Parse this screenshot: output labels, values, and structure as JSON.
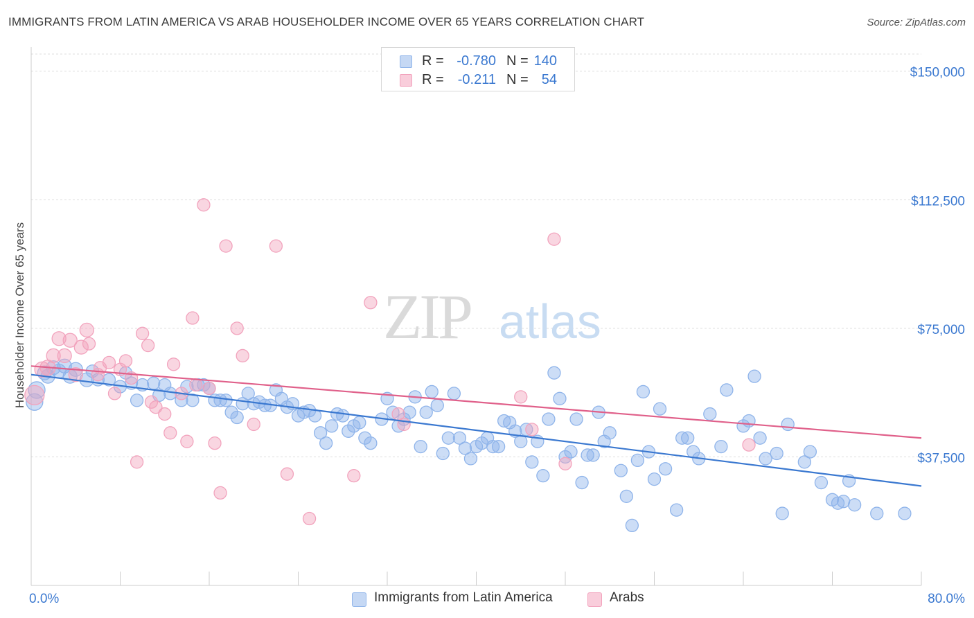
{
  "title": "IMMIGRANTS FROM LATIN AMERICA VS ARAB HOUSEHOLDER INCOME OVER 65 YEARS CORRELATION CHART",
  "source": "Source: ZipAtlas.com",
  "watermark": {
    "zip": "ZIP",
    "atlas": "atlas"
  },
  "legend": {
    "rows": [
      {
        "r_label": "R =",
        "r_value": "-0.780",
        "n_label": "N =",
        "n_value": "140",
        "color": "#8fb4ea"
      },
      {
        "r_label": "R =",
        "r_value": "-0.211",
        "n_label": "N =",
        "n_value": "54",
        "color": "#f2a3bd"
      }
    ]
  },
  "bottom_legend": [
    {
      "label": "Immigrants from Latin America",
      "color": "#8fb4ea"
    },
    {
      "label": "Arabs",
      "color": "#f2a3bd"
    }
  ],
  "chart_data": {
    "type": "scatter",
    "title": "IMMIGRANTS FROM LATIN AMERICA VS ARAB HOUSEHOLDER INCOME OVER 65 YEARS CORRELATION CHART",
    "xlabel": "",
    "ylabel": "Householder Income Over 65 years",
    "xlim": [
      0,
      80
    ],
    "ylim": [
      0,
      155000
    ],
    "x_tick_labels": [
      "0.0%",
      "80.0%"
    ],
    "y_ticks": [
      37500,
      75000,
      112500,
      150000
    ],
    "y_tick_labels": [
      "$37,500",
      "$75,000",
      "$112,500",
      "$150,000"
    ],
    "grid": true,
    "series": [
      {
        "name": "Immigrants from Latin America",
        "color": "#3a78d0",
        "fill": "#8fb4ea",
        "trend": {
          "x": [
            0,
            80
          ],
          "y": [
            61500,
            29000
          ]
        },
        "points": [
          [
            0.3,
            53500,
            12
          ],
          [
            0.5,
            57000,
            12
          ],
          [
            1.2,
            62000,
            10
          ],
          [
            1.5,
            61000,
            10
          ],
          [
            2.0,
            63500,
            10
          ],
          [
            2.5,
            62500,
            10
          ],
          [
            3.0,
            64000,
            10
          ],
          [
            3.5,
            61000,
            10
          ],
          [
            4.0,
            63000,
            10
          ],
          [
            5.0,
            60000,
            10
          ],
          [
            5.5,
            62500,
            9
          ],
          [
            6.0,
            60000,
            9
          ],
          [
            7.0,
            60000,
            9
          ],
          [
            8.0,
            58000,
            9
          ],
          [
            8.5,
            62000,
            9
          ],
          [
            9.0,
            59000,
            9
          ],
          [
            9.5,
            54000,
            9
          ],
          [
            10.0,
            58500,
            9
          ],
          [
            11.0,
            59000,
            9
          ],
          [
            11.5,
            55500,
            9
          ],
          [
            12.0,
            58500,
            9
          ],
          [
            12.5,
            56000,
            9
          ],
          [
            13.5,
            54000,
            9
          ],
          [
            14.0,
            58000,
            9
          ],
          [
            14.5,
            54000,
            9
          ],
          [
            15.0,
            58500,
            9
          ],
          [
            15.5,
            58500,
            9
          ],
          [
            16.0,
            57500,
            9
          ],
          [
            16.5,
            54000,
            9
          ],
          [
            17.0,
            54000,
            9
          ],
          [
            17.5,
            54000,
            9
          ],
          [
            18.0,
            50500,
            9
          ],
          [
            18.5,
            49000,
            9
          ],
          [
            19.0,
            53000,
            9
          ],
          [
            19.5,
            56000,
            9
          ],
          [
            20.0,
            53000,
            9
          ],
          [
            20.5,
            53500,
            9
          ],
          [
            21.0,
            52500,
            9
          ],
          [
            21.5,
            52500,
            9
          ],
          [
            22.0,
            57000,
            9
          ],
          [
            22.5,
            54500,
            9
          ],
          [
            23.0,
            52000,
            9
          ],
          [
            23.5,
            53000,
            9
          ],
          [
            24.0,
            49500,
            9
          ],
          [
            24.5,
            50500,
            9
          ],
          [
            25.0,
            51000,
            9
          ],
          [
            25.5,
            49500,
            9
          ],
          [
            26.0,
            44500,
            9
          ],
          [
            26.5,
            41500,
            9
          ],
          [
            27.0,
            46500,
            9
          ],
          [
            27.5,
            50000,
            9
          ],
          [
            28.0,
            49500,
            9
          ],
          [
            28.5,
            45000,
            9
          ],
          [
            29.0,
            46500,
            9
          ],
          [
            29.5,
            47500,
            9
          ],
          [
            30.0,
            43000,
            9
          ],
          [
            30.5,
            41500,
            9
          ],
          [
            31.5,
            48500,
            9
          ],
          [
            32.0,
            54500,
            9
          ],
          [
            32.5,
            50500,
            9
          ],
          [
            33.0,
            46500,
            9
          ],
          [
            33.5,
            48500,
            9
          ],
          [
            34.0,
            50500,
            9
          ],
          [
            34.5,
            55000,
            9
          ],
          [
            35.0,
            40500,
            9
          ],
          [
            35.5,
            50500,
            9
          ],
          [
            36.0,
            56500,
            9
          ],
          [
            36.5,
            52500,
            9
          ],
          [
            37.0,
            38500,
            9
          ],
          [
            37.5,
            43000,
            9
          ],
          [
            38.0,
            56000,
            9
          ],
          [
            38.5,
            43000,
            9
          ],
          [
            39.0,
            40000,
            9
          ],
          [
            39.5,
            37000,
            9
          ],
          [
            40.0,
            40500,
            9
          ],
          [
            40.5,
            41500,
            9
          ],
          [
            41.0,
            43000,
            9
          ],
          [
            41.5,
            40500,
            9
          ],
          [
            42.0,
            40500,
            9
          ],
          [
            42.5,
            48000,
            9
          ],
          [
            43.0,
            47500,
            9
          ],
          [
            43.5,
            45000,
            9
          ],
          [
            44.0,
            42000,
            9
          ],
          [
            44.5,
            45500,
            9
          ],
          [
            45.0,
            36000,
            9
          ],
          [
            45.5,
            42000,
            9
          ],
          [
            46.0,
            32000,
            9
          ],
          [
            46.5,
            48500,
            9
          ],
          [
            47.0,
            62000,
            9
          ],
          [
            47.5,
            54500,
            9
          ],
          [
            48.0,
            37500,
            9
          ],
          [
            48.5,
            39000,
            9
          ],
          [
            49.0,
            48500,
            9
          ],
          [
            49.5,
            30000,
            9
          ],
          [
            50.0,
            38000,
            9
          ],
          [
            50.5,
            38000,
            9
          ],
          [
            51.0,
            50500,
            9
          ],
          [
            51.5,
            42000,
            9
          ],
          [
            52.0,
            44500,
            9
          ],
          [
            53.0,
            33500,
            9
          ],
          [
            53.5,
            26000,
            9
          ],
          [
            54.0,
            17500,
            9
          ],
          [
            54.5,
            36500,
            9
          ],
          [
            55.0,
            56500,
            9
          ],
          [
            55.5,
            39000,
            9
          ],
          [
            56.0,
            31000,
            9
          ],
          [
            56.5,
            51500,
            9
          ],
          [
            57.0,
            34000,
            9
          ],
          [
            58.0,
            22000,
            9
          ],
          [
            58.5,
            43000,
            9
          ],
          [
            59.0,
            43000,
            9
          ],
          [
            59.5,
            39000,
            9
          ],
          [
            60.0,
            37000,
            9
          ],
          [
            61.0,
            50000,
            9
          ],
          [
            62.0,
            40500,
            9
          ],
          [
            62.5,
            57000,
            9
          ],
          [
            64.0,
            46500,
            9
          ],
          [
            64.5,
            48000,
            9
          ],
          [
            65.0,
            61000,
            9
          ],
          [
            65.5,
            43000,
            9
          ],
          [
            66.0,
            37000,
            9
          ],
          [
            67.0,
            38500,
            9
          ],
          [
            67.5,
            21000,
            9
          ],
          [
            68.0,
            47000,
            9
          ],
          [
            69.5,
            36000,
            9
          ],
          [
            70.0,
            39000,
            9
          ],
          [
            71.0,
            30000,
            9
          ],
          [
            72.0,
            25000,
            9
          ],
          [
            72.5,
            24000,
            9
          ],
          [
            73.0,
            24500,
            9
          ],
          [
            73.5,
            30500,
            9
          ],
          [
            74.0,
            23500,
            9
          ],
          [
            76.0,
            21000,
            9
          ],
          [
            78.5,
            21000,
            9
          ]
        ]
      },
      {
        "name": "Arabs",
        "color": "#e0608a",
        "fill": "#f2a3bd",
        "trend": {
          "x": [
            0,
            80
          ],
          "y": [
            64000,
            43000
          ]
        },
        "points": [
          [
            0.3,
            55500,
            14
          ],
          [
            1.0,
            63000,
            11
          ],
          [
            1.5,
            63500,
            11
          ],
          [
            2.0,
            67000,
            10
          ],
          [
            2.5,
            72000,
            10
          ],
          [
            3.0,
            67000,
            10
          ],
          [
            3.5,
            71500,
            10
          ],
          [
            4.0,
            61500,
            10
          ],
          [
            4.5,
            69500,
            10
          ],
          [
            5.0,
            74500,
            10
          ],
          [
            5.2,
            70500,
            9
          ],
          [
            6.0,
            61500,
            9
          ],
          [
            6.2,
            63500,
            9
          ],
          [
            7.0,
            65000,
            9
          ],
          [
            7.5,
            56000,
            9
          ],
          [
            8.0,
            63000,
            9
          ],
          [
            8.5,
            65500,
            9
          ],
          [
            9.0,
            60500,
            9
          ],
          [
            9.5,
            36000,
            9
          ],
          [
            10.0,
            73500,
            9
          ],
          [
            10.5,
            70000,
            9
          ],
          [
            10.8,
            53500,
            9
          ],
          [
            11.2,
            52000,
            9
          ],
          [
            12.0,
            50000,
            9
          ],
          [
            12.5,
            44500,
            9
          ],
          [
            12.8,
            64500,
            9
          ],
          [
            13.5,
            56000,
            9
          ],
          [
            14.0,
            42000,
            9
          ],
          [
            14.5,
            78000,
            9
          ],
          [
            14.8,
            58500,
            9
          ],
          [
            15.5,
            111000,
            9
          ],
          [
            16.0,
            57500,
            9
          ],
          [
            16.5,
            41500,
            9
          ],
          [
            17.0,
            27000,
            9
          ],
          [
            17.5,
            99000,
            9
          ],
          [
            18.5,
            75000,
            9
          ],
          [
            19.0,
            67000,
            9
          ],
          [
            20.0,
            47000,
            9
          ],
          [
            22.0,
            99000,
            9
          ],
          [
            23.0,
            32500,
            9
          ],
          [
            25.0,
            19500,
            9
          ],
          [
            29.0,
            32000,
            9
          ],
          [
            30.5,
            82500,
            9
          ],
          [
            33.0,
            50000,
            9
          ],
          [
            33.5,
            47000,
            9
          ],
          [
            44.0,
            55000,
            9
          ],
          [
            45.0,
            45500,
            9
          ],
          [
            47.0,
            101000,
            9
          ],
          [
            48.0,
            35500,
            9
          ],
          [
            64.5,
            41000,
            9
          ]
        ]
      }
    ]
  }
}
